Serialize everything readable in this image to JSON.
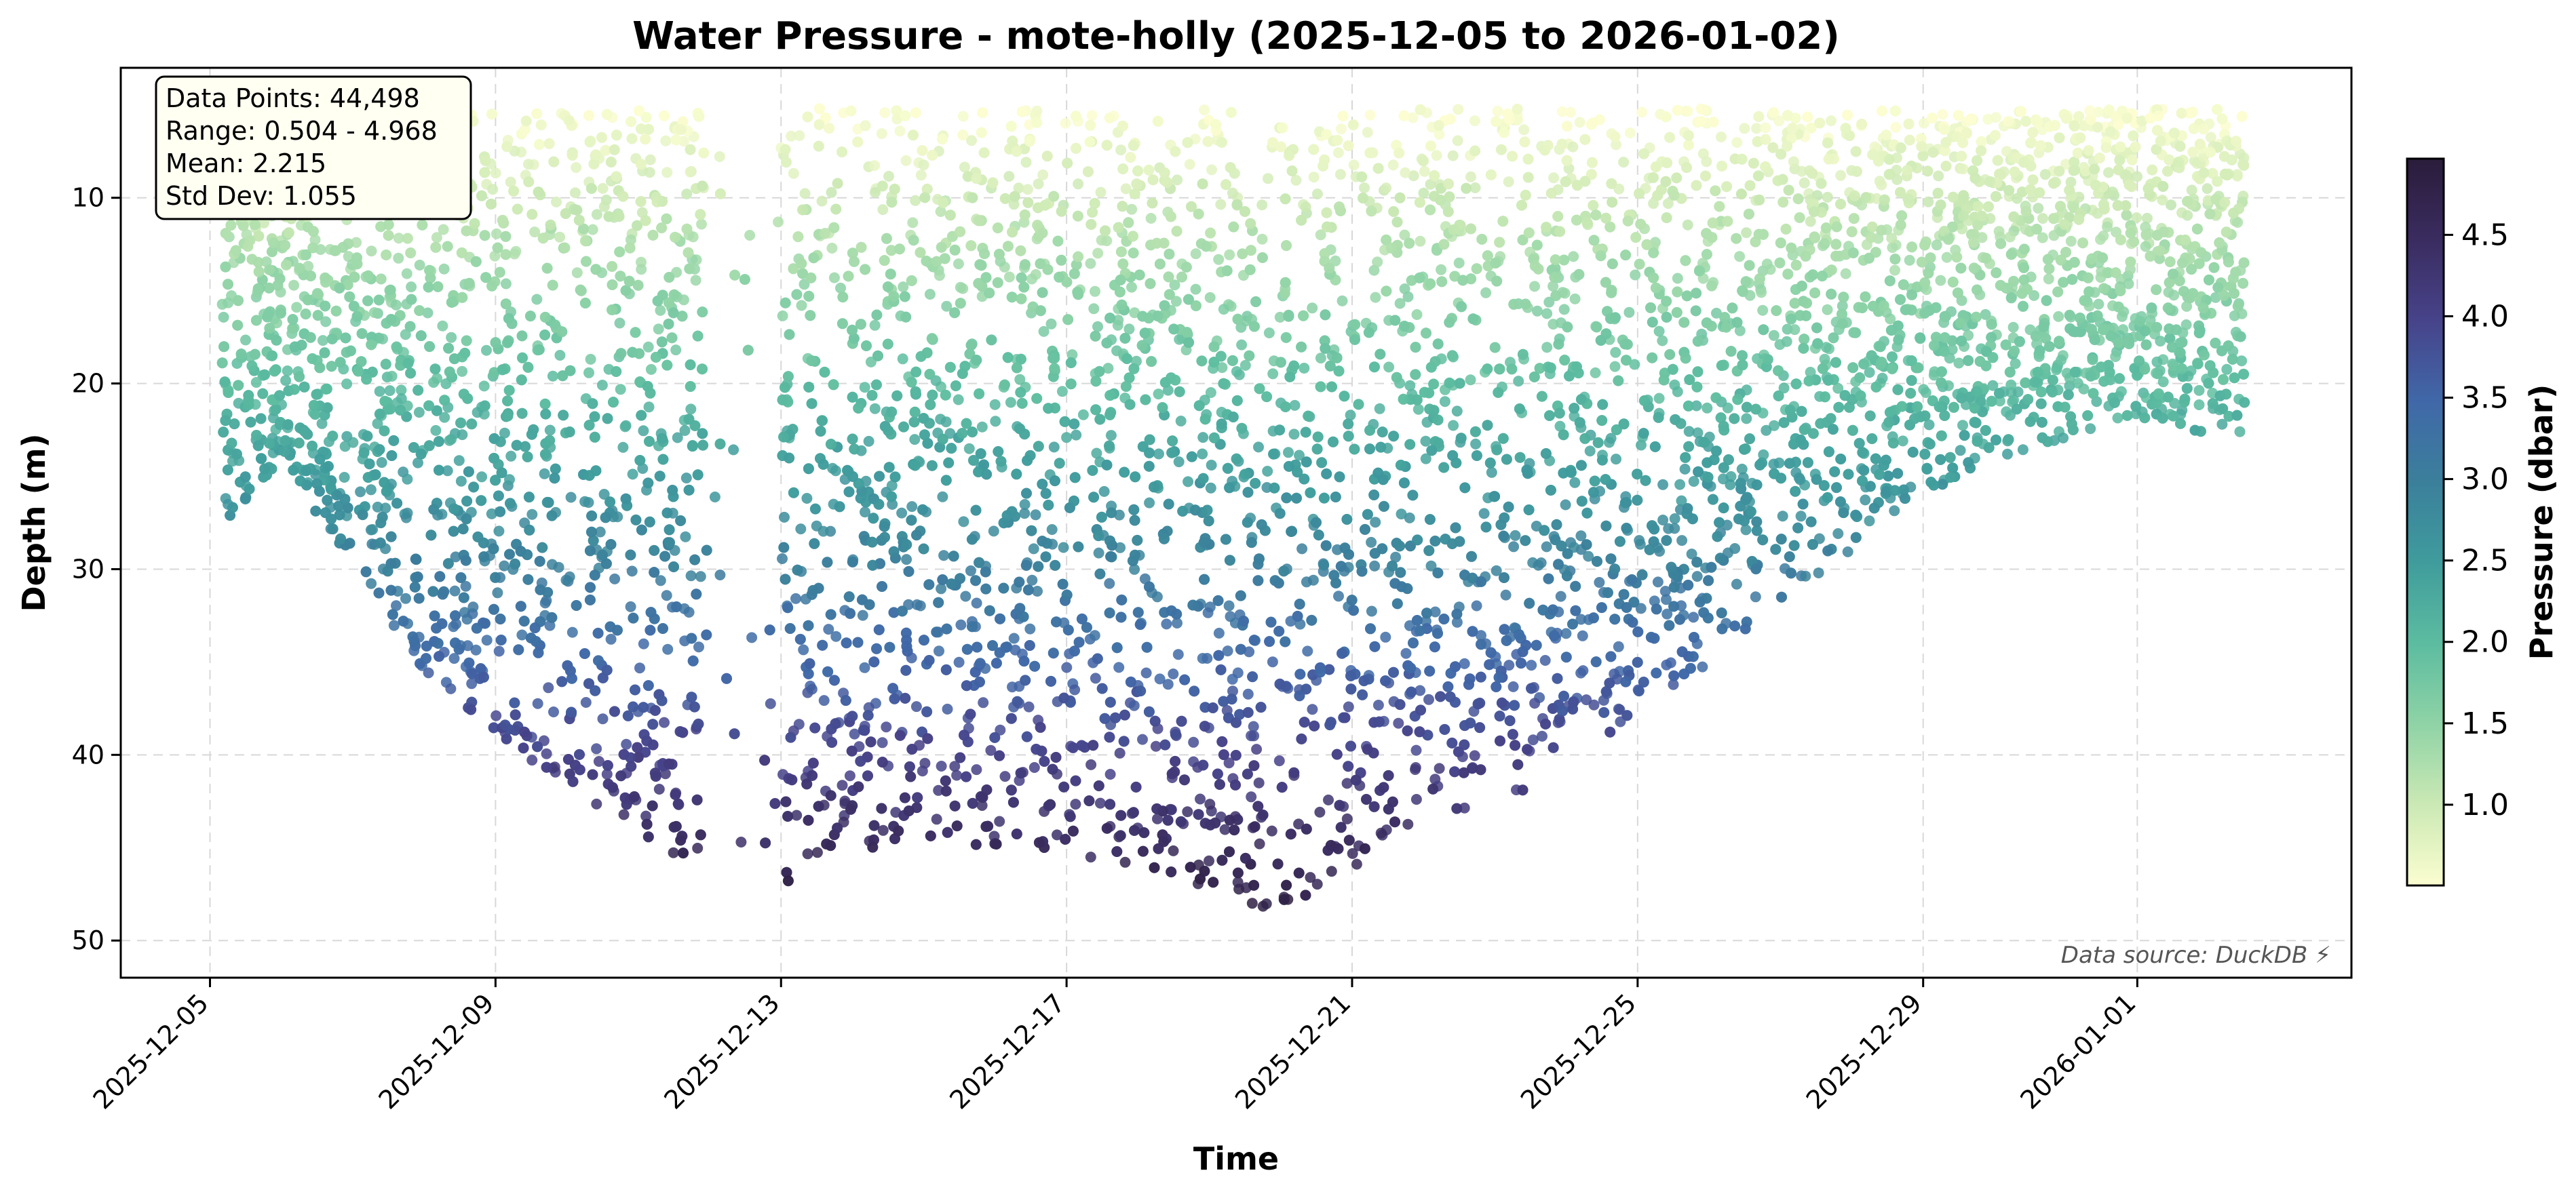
{
  "chart_data": {
    "type": "scatter",
    "title": "Water Pressure - mote-holly (2025-12-05 to 2026-01-02)",
    "xlabel": "Time",
    "ylabel": "Depth (m)",
    "x_axis": {
      "type": "date",
      "range": [
        "2025-12-03T18:00",
        "2026-01-04T00:00"
      ],
      "ticks": [
        "2025-12-05",
        "2025-12-09",
        "2025-12-13",
        "2025-12-17",
        "2025-12-21",
        "2025-12-25",
        "2025-12-29",
        "2026-01-01"
      ]
    },
    "y_axis": {
      "inverted": true,
      "range": [
        3,
        52
      ],
      "ticks": [
        10,
        20,
        30,
        40,
        50
      ]
    },
    "grid": true,
    "colorbar": {
      "label": "Pressure (dbar)",
      "range": [
        0.504,
        4.968
      ],
      "ticks": [
        1.0,
        1.5,
        2.0,
        2.5,
        3.0,
        3.5,
        4.0,
        4.5
      ],
      "tick_labels": [
        "1.0",
        "1.5",
        "2.0",
        "2.5",
        "3.0",
        "3.5",
        "4.0",
        "4.5"
      ],
      "colors": [
        "#fbfdd0",
        "#cbe9b4",
        "#8fd3a6",
        "#5cbca0",
        "#3f9c9c",
        "#3b7f9b",
        "#4068a8",
        "#47438a",
        "#3a2c5f",
        "#2a1c3a"
      ]
    },
    "stats_box": [
      "Data Points: 44,498",
      "Range: 0.504 - 4.968",
      "Mean: 2.215",
      "Std Dev: 1.055"
    ],
    "annotation": "Data source: DuckDB ⚡",
    "envelope": [
      {
        "t": "2025-12-05T04:00",
        "min_depth": 5.2,
        "max_depth": 28
      },
      {
        "t": "2025-12-06T00:00",
        "min_depth": 5.2,
        "max_depth": 24
      },
      {
        "t": "2025-12-07T00:00",
        "min_depth": 5.2,
        "max_depth": 30
      },
      {
        "t": "2025-12-08T00:00",
        "min_depth": 5.2,
        "max_depth": 36
      },
      {
        "t": "2025-12-09T00:00",
        "min_depth": 5.2,
        "max_depth": 39
      },
      {
        "t": "2025-12-10T00:00",
        "min_depth": 5.2,
        "max_depth": 42
      },
      {
        "t": "2025-12-11T00:00",
        "min_depth": 5.2,
        "max_depth": 44
      },
      {
        "t": "2025-12-11T18:00",
        "min_depth": 5.2,
        "max_depth": 46.5
      },
      {
        "t": "2025-12-13T00:00",
        "min_depth": 5.2,
        "max_depth": 48
      },
      {
        "t": "2025-12-14T00:00",
        "min_depth": 5.2,
        "max_depth": 45
      },
      {
        "t": "2025-12-16T00:00",
        "min_depth": 5.2,
        "max_depth": 45
      },
      {
        "t": "2025-12-18T00:00",
        "min_depth": 5.2,
        "max_depth": 46
      },
      {
        "t": "2025-12-19T12:00",
        "min_depth": 5.2,
        "max_depth": 48.5
      },
      {
        "t": "2025-12-21T00:00",
        "min_depth": 5.2,
        "max_depth": 47
      },
      {
        "t": "2025-12-22T00:00",
        "min_depth": 5.2,
        "max_depth": 44
      },
      {
        "t": "2025-12-24T00:00",
        "min_depth": 5.2,
        "max_depth": 41
      },
      {
        "t": "2025-12-26T00:00",
        "min_depth": 5.2,
        "max_depth": 35
      },
      {
        "t": "2025-12-28T00:00",
        "min_depth": 5.2,
        "max_depth": 29
      },
      {
        "t": "2025-12-29T00:00",
        "min_depth": 5.2,
        "max_depth": 26
      },
      {
        "t": "2025-12-30T00:00",
        "min_depth": 5.2,
        "max_depth": 24
      },
      {
        "t": "2025-12-31T00:00",
        "min_depth": 5.2,
        "max_depth": 23
      },
      {
        "t": "2026-01-01T00:00",
        "min_depth": 5.2,
        "max_depth": 22
      },
      {
        "t": "2026-01-02T12:00",
        "min_depth": 5.2,
        "max_depth": 23
      }
    ]
  }
}
